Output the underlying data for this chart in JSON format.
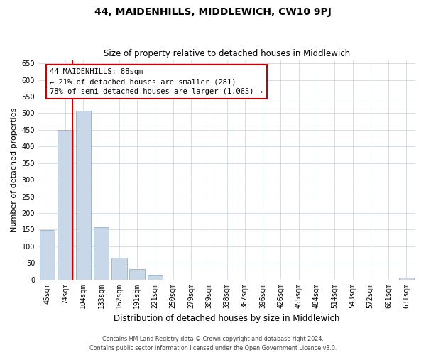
{
  "title": "44, MAIDENHILLS, MIDDLEWICH, CW10 9PJ",
  "subtitle": "Size of property relative to detached houses in Middlewich",
  "xlabel": "Distribution of detached houses by size in Middlewich",
  "ylabel": "Number of detached properties",
  "categories": [
    "45sqm",
    "74sqm",
    "104sqm",
    "133sqm",
    "162sqm",
    "191sqm",
    "221sqm",
    "250sqm",
    "279sqm",
    "309sqm",
    "338sqm",
    "367sqm",
    "396sqm",
    "426sqm",
    "455sqm",
    "484sqm",
    "514sqm",
    "543sqm",
    "572sqm",
    "601sqm",
    "631sqm"
  ],
  "values": [
    148,
    450,
    507,
    158,
    65,
    31,
    12,
    0,
    0,
    0,
    0,
    0,
    0,
    0,
    0,
    0,
    0,
    0,
    0,
    0,
    5
  ],
  "bar_color": "#c8d8e8",
  "bar_edge_color": "#a0b8cc",
  "property_line_label": "44 MAIDENHILLS: 88sqm",
  "annotation_line1": "← 21% of detached houses are smaller (281)",
  "annotation_line2": "78% of semi-detached houses are larger (1,065) →",
  "annotation_box_color": "#ffffff",
  "annotation_box_edge_color": "#cc0000",
  "property_line_color": "#cc0000",
  "ylim": [
    0,
    660
  ],
  "yticks": [
    0,
    50,
    100,
    150,
    200,
    250,
    300,
    350,
    400,
    450,
    500,
    550,
    600,
    650
  ],
  "footer_line1": "Contains HM Land Registry data © Crown copyright and database right 2024.",
  "footer_line2": "Contains public sector information licensed under the Open Government Licence v3.0.",
  "background_color": "#ffffff",
  "grid_color": "#d0d8e0",
  "title_fontsize": 10,
  "subtitle_fontsize": 8.5,
  "ylabel_fontsize": 8,
  "xlabel_fontsize": 8.5,
  "tick_fontsize": 7,
  "footer_fontsize": 5.8,
  "annotation_fontsize": 7.5
}
